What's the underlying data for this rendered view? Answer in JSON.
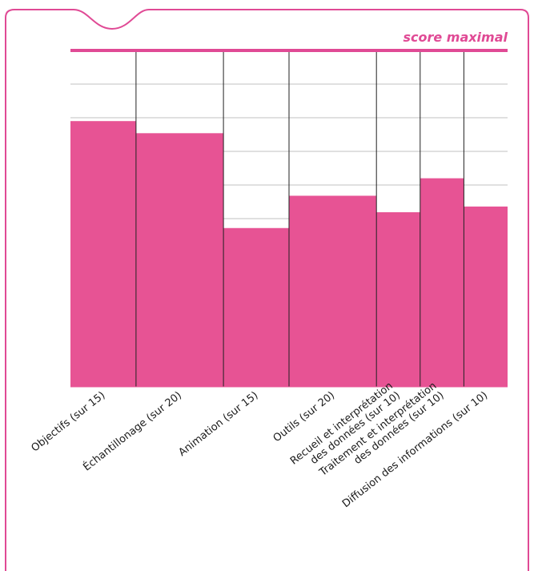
{
  "chart_data": {
    "type": "bar",
    "title": "",
    "xlabel": "",
    "ylabel": "",
    "legend_position": "top-right",
    "max_score_label": "score maximal",
    "grid": true,
    "ylim": [
      0,
      1
    ],
    "categories": [
      {
        "label_lines": [
          "Objectifs (sur 15)"
        ],
        "max_score": 15,
        "value_fraction": 0.79
      },
      {
        "label_lines": [
          "Échantillonage (sur 20)"
        ],
        "max_score": 20,
        "value_fraction": 0.754
      },
      {
        "label_lines": [
          "Animation (sur 15)"
        ],
        "max_score": 15,
        "value_fraction": 0.472
      },
      {
        "label_lines": [
          "Outils (sur 20)"
        ],
        "max_score": 20,
        "value_fraction": 0.568
      },
      {
        "label_lines": [
          "Recueil et interprétation",
          "des données (sur 10)"
        ],
        "max_score": 10,
        "value_fraction": 0.519
      },
      {
        "label_lines": [
          "Traitement et interprétation",
          "des données (sur 10)"
        ],
        "max_score": 10,
        "value_fraction": 0.62
      },
      {
        "label_lines": [
          "Diffusion des informations (sur 10)"
        ],
        "max_score": 10,
        "value_fraction": 0.536
      }
    ],
    "colors": {
      "bar": "#e75394",
      "accent": "#e04a95",
      "grid": "#c0c0c0",
      "axis_dividers": "#222222",
      "frame": "#e04a95"
    }
  }
}
